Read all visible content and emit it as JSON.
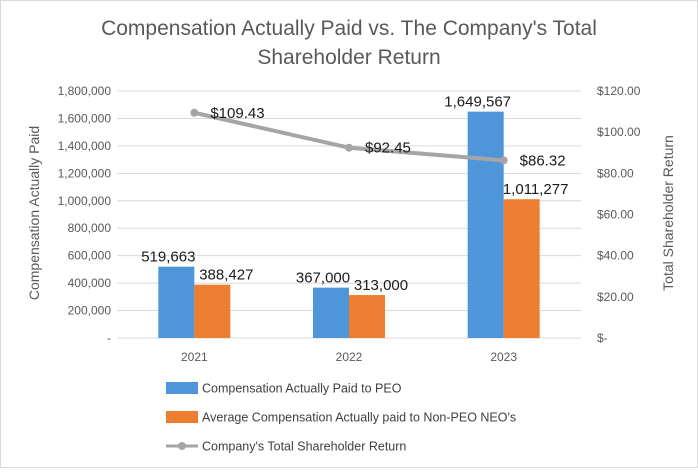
{
  "chart_data": {
    "type": "bar",
    "title_lines": [
      "Compensation  Actually Paid vs. The Company's Total",
      "Shareholder  Return"
    ],
    "categories": [
      "2021",
      "2022",
      "2023"
    ],
    "series": [
      {
        "name": "Compensation Actually Paid to PEO",
        "kind": "bar",
        "axis": "left",
        "color": "#4e95d9",
        "values": [
          519663,
          367000,
          1649567
        ],
        "labels": [
          "519,663",
          "367,000",
          "1,649,567"
        ]
      },
      {
        "name": "Average Compensation Actually paid to Non-PEO NEO's",
        "kind": "bar",
        "axis": "left",
        "color": "#ed7d31",
        "values": [
          388427,
          313000,
          1011277
        ],
        "labels": [
          "388,427",
          "313,000",
          "1,011,277"
        ]
      },
      {
        "name": "Company's Total Shareholder Return",
        "kind": "line",
        "axis": "right",
        "color": "#a5a5a5",
        "values": [
          109.43,
          92.45,
          86.32
        ],
        "labels": [
          "$109.43",
          "$92.45",
          "$86.32"
        ]
      }
    ],
    "ylabel": "Compensation  Actually Paid",
    "y2label": "Total Shareholder  Return",
    "ylim": [
      0,
      1800000
    ],
    "y2lim": [
      0,
      120
    ],
    "yticks": [
      "-",
      "200,000",
      "400,000",
      "600,000",
      "800,000",
      "1,000,000",
      "1,200,000",
      "1,400,000",
      "1,600,000",
      "1,800,000"
    ],
    "y2ticks": [
      "$-",
      "$20.00",
      "$40.00",
      "$60.00",
      "$80.00",
      "$100.00",
      "$120.00"
    ],
    "grid": true,
    "legend_position": "bottom"
  }
}
